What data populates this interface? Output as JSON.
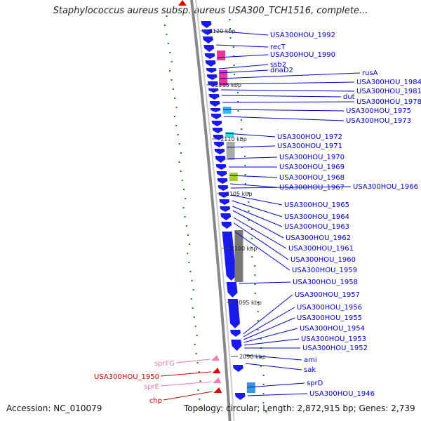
{
  "title": "Staphylococcus aureus subsp. aureus USA300_TCH1516, complete...",
  "accession": "Accession: NC_010079",
  "topology": "Topology: circular; Length: 2,872,915 bp; Genes: 2,739",
  "colors": {
    "forward_gene": "#1a1aee",
    "label_link": "#0000cc",
    "reverse_gene": "#dd0000",
    "reverse_pink": "#f080b0",
    "backbone": "#888888",
    "gc_marks": "#227722"
  },
  "ticks": [
    "2120 kbp",
    "2115 kbp",
    "2110 kbp",
    "2105 kbp",
    "2100 kbp",
    "2095 kbp",
    "2090 kbp"
  ],
  "right_labels": [
    "USA300HOU_1992",
    "recT",
    "USA300HOU_1990",
    "ssb2",
    "dnaD2",
    "rusA",
    "USA300HOU_1984",
    "USA300HOU_1981",
    "dut",
    "USA300HOU_1978",
    "USA300HOU_1975",
    "USA300HOU_1973",
    "USA300HOU_1972",
    "USA300HOU_1971",
    "USA300HOU_1970",
    "USA300HOU_1969",
    "USA300HOU_1968",
    "USA300HOU_1967",
    "USA300HOU_1966",
    "USA300HOU_1965",
    "USA300HOU_1964",
    "USA300HOU_1963",
    "USA300HOU_1962",
    "USA300HOU_1961",
    "USA300HOU_1960",
    "USA300HOU_1959",
    "USA300HOU_1958",
    "USA300HOU_1957",
    "USA300HOU_1956",
    "USA300HOU_1955",
    "USA300HOU_1954",
    "USA300HOU_1953",
    "USA300HOU_1952",
    "ami",
    "sak",
    "sprD",
    "USA300HOU_1946"
  ],
  "left_labels": [
    "sprFG",
    "USA300HOU_1950",
    "sprE",
    "chp"
  ]
}
